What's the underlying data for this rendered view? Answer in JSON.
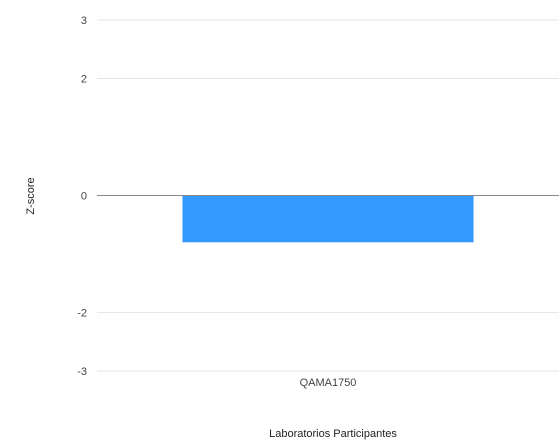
{
  "chart_data": {
    "type": "bar",
    "categories": [
      "QAMA1750"
    ],
    "values": [
      -0.8
    ],
    "xlabel": "Laboratorios Participantes",
    "ylabel": "Z-score",
    "yticks": [
      3,
      2,
      0,
      -2,
      -3
    ],
    "ylim": [
      -3,
      3
    ],
    "grid": true,
    "legend": "none",
    "bar_color": "#3399ff"
  }
}
